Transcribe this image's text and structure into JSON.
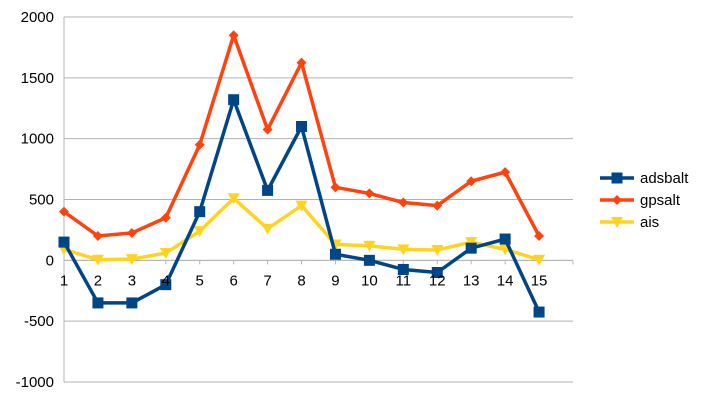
{
  "chart_data": {
    "type": "line",
    "categories": [
      "1",
      "2",
      "3",
      "4",
      "5",
      "6",
      "7",
      "8",
      "9",
      "10",
      "11",
      "12",
      "13",
      "14",
      "15"
    ],
    "title": "",
    "xlabel": "",
    "ylabel": "",
    "ylim": [
      -1000,
      2000
    ],
    "y_ticks": [
      "2000",
      "1500",
      "1000",
      "500",
      "0",
      "-500",
      "-1000"
    ],
    "grid": "horizontal",
    "legend_position": "right",
    "series": [
      {
        "name": "adsbalt",
        "color": "#004586",
        "marker": "square",
        "values": [
          150,
          -350,
          -350,
          -200,
          400,
          1320,
          575,
          1100,
          50,
          0,
          -75,
          -100,
          100,
          175,
          -425
        ]
      },
      {
        "name": "gpsalt",
        "color": "#ff420e",
        "marker": "diamond",
        "values": [
          400,
          200,
          225,
          350,
          950,
          1850,
          1075,
          1625,
          600,
          550,
          475,
          450,
          650,
          725,
          200
        ]
      },
      {
        "name": "ais",
        "color": "#ffd320",
        "marker": "triangle-down",
        "values": [
          90,
          5,
          10,
          60,
          240,
          510,
          260,
          450,
          130,
          120,
          90,
          85,
          150,
          90,
          5
        ]
      }
    ]
  }
}
